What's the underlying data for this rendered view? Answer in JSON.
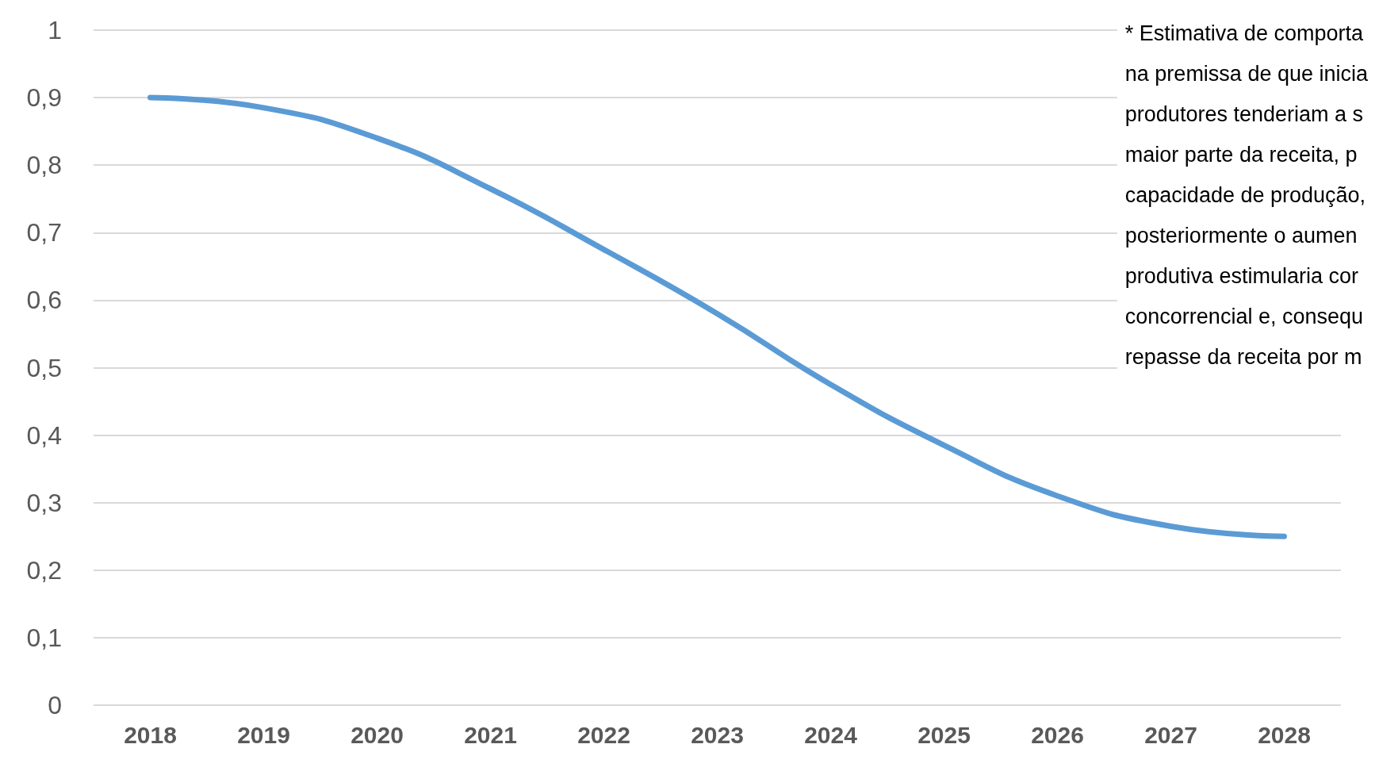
{
  "chart_data": {
    "type": "line",
    "categories": [
      "2018",
      "2019",
      "2020",
      "2021",
      "2022",
      "2023",
      "2024",
      "2025",
      "2026",
      "2027",
      "2028"
    ],
    "series": [
      {
        "color": "#5b9bd5",
        "values": [
          0.9,
          0.885,
          0.84,
          0.765,
          0.675,
          0.58,
          0.475,
          0.385,
          0.31,
          0.265,
          0.25
        ]
      }
    ],
    "ylim": [
      0,
      1
    ],
    "yticks": [
      0,
      {
        "value": 0.1,
        "label": "0,1"
      },
      {
        "value": 0.2,
        "label": "0,2"
      },
      {
        "value": 0.3,
        "label": "0,3"
      },
      {
        "value": 0.4,
        "label": "0,4"
      },
      {
        "value": 0.5,
        "label": "0,5"
      },
      {
        "value": 0.6,
        "label": "0,6"
      },
      {
        "value": 0.7,
        "label": "0,7"
      },
      {
        "value": 0.8,
        "label": "0,8"
      },
      {
        "value": 0.9,
        "label": "0,9"
      },
      1
    ],
    "grid": "y",
    "marker": "none",
    "line_style": "solid",
    "annotations": [
      "* Estimativa de comporta\nna premissa de que inicia\nprodutores tenderiam a s\nmaior parte da receita, p\ncapacidade de produção,\nposteriormente o aumen\nprodutiva estimularia cor\nconcorrencial e, consequ\nrepasse da receita por m"
    ]
  }
}
